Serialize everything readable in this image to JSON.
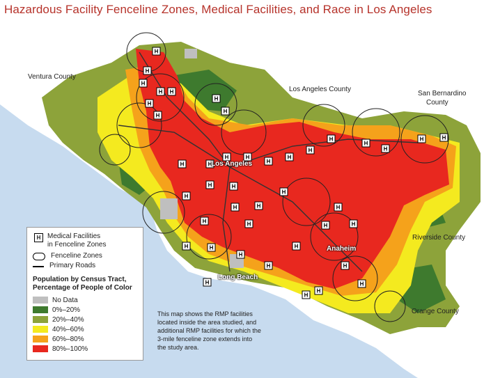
{
  "title": "Hazardous Facility Fenceline Zones, Medical Facilities, and Race in Los Angeles",
  "place_labels": {
    "ventura": "Ventura County",
    "los_angeles_county": "Los Angeles County",
    "san_bernardino": "San Bernardino",
    "san_bernardino_2": "County",
    "riverside": "Riverside County",
    "orange": "Orange County",
    "los_angeles_city": "Los Angeles",
    "anaheim": "Anaheim",
    "long_beach": "Long Beach"
  },
  "legend": {
    "medical_icon": "H",
    "medical_line1": "Medical Facilities",
    "medical_line2": "in Fenceline Zones",
    "fenceline": "Fenceline Zones",
    "roads": "Primary Roads",
    "population_title_line1": "Population by Census Tract,",
    "population_title_line2": "Percentage of People of Color",
    "classes": [
      {
        "label": "No Data",
        "color": "#bfbfbf"
      },
      {
        "label": "0%–20%",
        "color": "#3e7a2e"
      },
      {
        "label": "20%–40%",
        "color": "#8da33a"
      },
      {
        "label": "40%–60%",
        "color": "#f4ea1f"
      },
      {
        "label": "60%–80%",
        "color": "#f5a21b"
      },
      {
        "label": "80%–100%",
        "color": "#e8281f"
      }
    ]
  },
  "note": {
    "line1": "This map shows the RMP facilities",
    "line2": "located inside the area studied, and",
    "line3": "additional RMP facilities for which the",
    "line4": "3-mile fenceline zone extends into",
    "line5": "the study area."
  },
  "colors": {
    "title": "#b6322a",
    "ocean": "#c7dbef",
    "land_outside": "#ffffff"
  }
}
